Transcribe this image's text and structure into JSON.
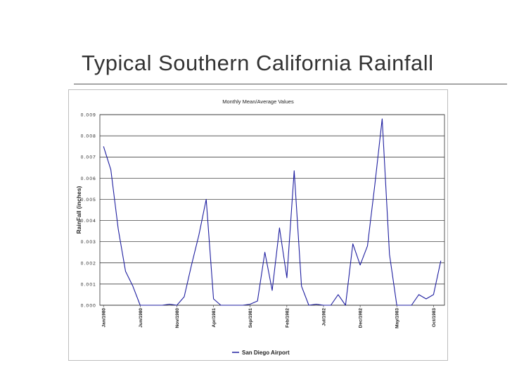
{
  "slide": {
    "title": "Typical Southern California Rainfall"
  },
  "chart_data": {
    "type": "line",
    "title": "Monthly Mean/Average Values",
    "xlabel": "",
    "ylabel": "RainFall (inches)",
    "ylim": [
      0,
      0.009
    ],
    "yticks": [
      "0.000",
      "0.001",
      "0.002",
      "0.003",
      "0.004",
      "0.005",
      "0.006",
      "0.007",
      "0.008",
      "0.009"
    ],
    "xtick_labels": [
      {
        "index": 0,
        "label": "Jan/1980"
      },
      {
        "index": 5,
        "label": "Jun/1980"
      },
      {
        "index": 10,
        "label": "Nov/1980"
      },
      {
        "index": 15,
        "label": "Apr/1981"
      },
      {
        "index": 20,
        "label": "Sep/1981"
      },
      {
        "index": 25,
        "label": "Feb/1982"
      },
      {
        "index": 30,
        "label": "Jul/1982"
      },
      {
        "index": 35,
        "label": "Dec/1982"
      },
      {
        "index": 40,
        "label": "May/1983"
      },
      {
        "index": 45,
        "label": "Oct/1983"
      }
    ],
    "grid": true,
    "legend_position": "bottom-center",
    "series": [
      {
        "name": "San Diego Airport",
        "color": "#1f1fa0",
        "values": [
          0.0075,
          0.0064,
          0.0036,
          0.0016,
          0.0009,
          0.0,
          0.0,
          0.0,
          0.0,
          5e-05,
          0.0,
          0.0004,
          0.0019,
          0.0033,
          0.005,
          0.0003,
          0.0,
          0.0,
          0.0,
          0.0,
          5e-05,
          0.0002,
          0.0025,
          0.0007,
          0.00365,
          0.0013,
          0.00635,
          0.0009,
          0.0,
          5e-05,
          0.0,
          0.0,
          0.0005,
          0.0,
          0.0029,
          0.0019,
          0.0028,
          0.0057,
          0.0088,
          0.0024,
          0.0,
          0.0,
          0.0,
          0.0005,
          0.0003,
          0.0005,
          0.0021
        ]
      }
    ]
  }
}
